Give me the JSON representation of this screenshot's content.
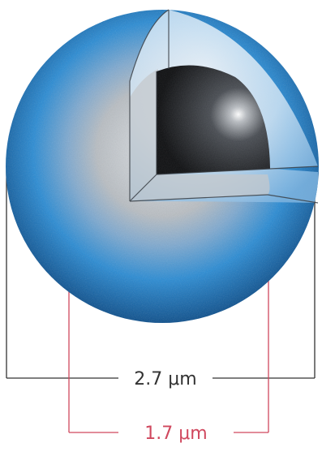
{
  "dimensions": {
    "outer": {
      "label": "2.7 μm",
      "color": "#333333"
    },
    "inner": {
      "label": "1.7 μm",
      "color": "#d0485e"
    }
  },
  "colors": {
    "shell": "#1f7fc4",
    "shell_dark": "#0b4f8a",
    "middle_layer": "#b9bcc0",
    "core": "#1b1d20",
    "background": "#ffffff"
  }
}
